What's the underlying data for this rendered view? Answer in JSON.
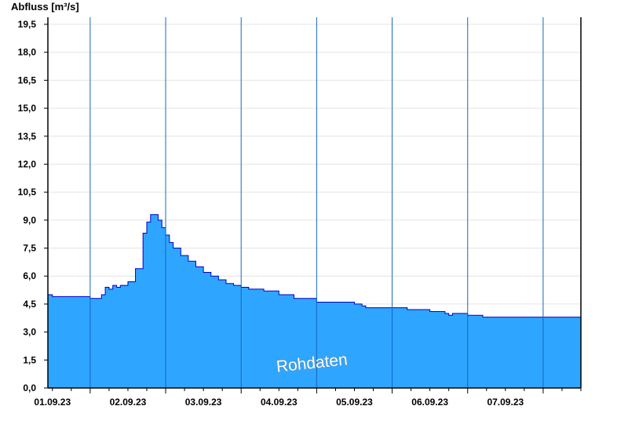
{
  "chart_data": {
    "type": "area",
    "title": "",
    "ylabel": "Abfluss [m³/s]",
    "xlabel": "",
    "ylim": [
      0,
      19.5
    ],
    "x_range_days": [
      31.44,
      38.5
    ],
    "yticks": [
      "0,0",
      "1,5",
      "3,0",
      "4,5",
      "6,0",
      "7,5",
      "9,0",
      "10,5",
      "12,0",
      "13,5",
      "15,0",
      "16,5",
      "18,0",
      "19,5"
    ],
    "xticks": [
      "01.09.23",
      "02.09.23",
      "03.09.23",
      "04.09.23",
      "05.09.23",
      "06.09.23",
      "07.09.23"
    ],
    "grid": true,
    "fill_color": "#2ea6ff",
    "line_color": "#0000cc",
    "watermark": "Rohdaten",
    "series": [
      {
        "x": [
          31.44,
          31.5,
          31.6,
          31.8,
          31.9,
          32.0,
          32.1,
          32.15,
          32.2,
          32.25,
          32.3,
          32.35,
          32.4,
          32.45,
          32.5,
          32.6,
          32.7,
          32.75,
          32.8,
          32.85,
          32.9,
          32.95,
          33.0,
          33.05,
          33.1,
          33.2,
          33.3,
          33.4,
          33.5,
          33.6,
          33.7,
          33.8,
          33.9,
          34.0,
          34.1,
          34.3,
          34.5,
          34.7,
          35.0,
          35.3,
          35.5,
          35.6,
          35.65,
          35.7,
          35.8,
          35.9,
          36.0,
          36.2,
          36.4,
          36.5,
          36.6,
          36.7,
          36.75,
          36.8,
          36.9,
          37.0,
          37.2,
          37.3,
          37.5,
          37.8,
          38.0,
          38.5
        ],
        "y": [
          5.0,
          4.9,
          4.9,
          4.9,
          4.9,
          4.8,
          4.8,
          5.0,
          5.4,
          5.3,
          5.5,
          5.4,
          5.5,
          5.5,
          5.7,
          6.4,
          8.3,
          8.9,
          9.3,
          9.3,
          9.0,
          8.6,
          8.2,
          7.8,
          7.5,
          7.1,
          6.8,
          6.5,
          6.2,
          6.0,
          5.8,
          5.6,
          5.5,
          5.4,
          5.3,
          5.2,
          5.0,
          4.8,
          4.6,
          4.6,
          4.5,
          4.4,
          4.3,
          4.3,
          4.3,
          4.3,
          4.3,
          4.2,
          4.2,
          4.1,
          4.1,
          4.0,
          3.9,
          4.0,
          4.0,
          3.9,
          3.8,
          3.8,
          3.8,
          3.8,
          3.8,
          3.8
        ]
      }
    ]
  }
}
